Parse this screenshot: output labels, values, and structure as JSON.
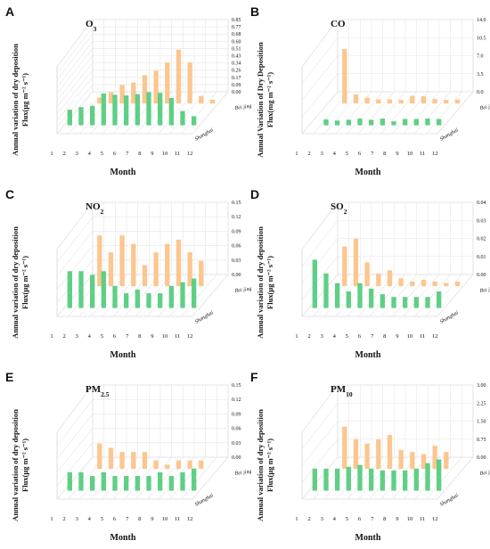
{
  "colors": {
    "beijing": "#fcc68f",
    "shanghai": "#5fcf85"
  },
  "months": [
    "1",
    "2",
    "3",
    "4",
    "5",
    "6",
    "7",
    "8",
    "9",
    "10",
    "11",
    "12"
  ],
  "xlabel": "Month",
  "sites": [
    "Bei jing",
    "Shanghai"
  ],
  "chart_data": [
    {
      "type": "bar",
      "panel": "A",
      "title": "O3",
      "title_main": "O",
      "title_sub": "3",
      "ylabel_line1": "Annual variation of dry deposition",
      "ylabel_line2": "Flux(μg m⁻² s⁻¹)",
      "xlabel": "Month",
      "categories": [
        "1",
        "2",
        "3",
        "4",
        "5",
        "6",
        "7",
        "8",
        "9",
        "10",
        "11",
        "12"
      ],
      "ylim": [
        0,
        0.85
      ],
      "ticks": [
        "0.00",
        "0.09",
        "0.17",
        "0.26",
        "0.34",
        "0.43",
        "0.51",
        "0.60",
        "0.68",
        "0.77",
        "0.85"
      ],
      "series": [
        {
          "name": "Bei jing",
          "values": [
            0.0,
            0.08,
            0.15,
            0.25,
            0.28,
            0.38,
            0.44,
            0.55,
            0.72,
            0.55,
            0.1,
            0.05
          ]
        },
        {
          "name": "Shanghai",
          "values": [
            0.24,
            0.28,
            0.3,
            0.49,
            0.47,
            0.46,
            0.48,
            0.51,
            0.5,
            0.42,
            0.22,
            0.14
          ]
        }
      ]
    },
    {
      "type": "bar",
      "panel": "B",
      "title": "CO",
      "title_main": "CO",
      "title_sub": "",
      "ylabel_line1": "Annual Variation of Dry Deposition",
      "ylabel_line2": "Flux(mg m⁻² s⁻¹)",
      "xlabel": "Month",
      "categories": [
        "1",
        "2",
        "3",
        "4",
        "5",
        "6",
        "7",
        "8",
        "9",
        "10",
        "11",
        "12"
      ],
      "ylim": [
        0,
        14.0
      ],
      "ticks": [
        "0.0",
        "3.5",
        "7.0",
        "10.5",
        "14.0"
      ],
      "series": [
        {
          "name": "Bei jing",
          "values": [
            0.0,
            12.0,
            2.0,
            1.3,
            0.9,
            0.9,
            0.8,
            1.7,
            1.6,
            1.0,
            0.8,
            0.9
          ]
        },
        {
          "name": "Shanghai",
          "values": [
            0.0,
            1.5,
            1.2,
            1.4,
            1.7,
            1.4,
            1.7,
            1.0,
            1.6,
            1.6,
            1.7,
            1.6
          ]
        }
      ]
    },
    {
      "type": "bar",
      "panel": "C",
      "title": "NO2",
      "title_main": "NO",
      "title_sub": "2",
      "ylabel_line1": "Annual variation of dry deposition",
      "ylabel_line2": "Flux(μg m⁻² s⁻¹)",
      "xlabel": "Month",
      "categories": [
        "1",
        "2",
        "3",
        "4",
        "5",
        "6",
        "7",
        "8",
        "9",
        "10",
        "11",
        "12"
      ],
      "ylim": [
        0,
        0.15
      ],
      "ticks": [
        "0.00",
        "0.03",
        "0.06",
        "0.09",
        "0.12",
        "0.15"
      ],
      "series": [
        {
          "name": "Bei jing",
          "values": [
            0.0,
            0.12,
            0.08,
            0.12,
            0.1,
            0.05,
            0.08,
            0.1,
            0.11,
            0.08,
            0.06,
            0.0
          ]
        },
        {
          "name": "Shanghai",
          "values": [
            0.1,
            0.1,
            0.09,
            0.1,
            0.06,
            0.04,
            0.05,
            0.04,
            0.04,
            0.06,
            0.07,
            0.08
          ]
        }
      ]
    },
    {
      "type": "bar",
      "panel": "D",
      "title": "SO2",
      "title_main": "SO",
      "title_sub": "2",
      "ylabel_line1": "Annual variation of dry deposition",
      "ylabel_line2": "Flux(μg m⁻² s⁻¹)",
      "xlabel": "Month",
      "categories": [
        "1",
        "2",
        "3",
        "4",
        "5",
        "6",
        "7",
        "8",
        "9",
        "10",
        "11",
        "12"
      ],
      "ylim": [
        0,
        0.04
      ],
      "ticks": [
        "0.00",
        "0.01",
        "0.02",
        "0.03",
        "0.04"
      ],
      "series": [
        {
          "name": "Bei jing",
          "values": [
            0.0,
            0.025,
            0.03,
            0.015,
            0.008,
            0.01,
            0.005,
            0.003,
            0.004,
            0.003,
            0.002,
            0.003
          ]
        },
        {
          "name": "Shanghai",
          "values": [
            0.035,
            0.025,
            0.018,
            0.012,
            0.018,
            0.014,
            0.01,
            0.008,
            0.008,
            0.008,
            0.008,
            0.012
          ]
        }
      ]
    },
    {
      "type": "bar",
      "panel": "E",
      "title": "PM2.5",
      "title_main": "PM",
      "title_sub": "2.5",
      "ylabel_line1": "Annual variation of dry deposition",
      "ylabel_line2": "Flux(μg m⁻² s⁻¹)",
      "xlabel": "Month",
      "categories": [
        "1",
        "2",
        "3",
        "4",
        "5",
        "6",
        "7",
        "8",
        "9",
        "10",
        "11",
        "12"
      ],
      "ylim": [
        0,
        0.15
      ],
      "ticks": [
        "0.00",
        "0.03",
        "0.06",
        "0.09",
        "0.12",
        "0.15"
      ],
      "series": [
        {
          "name": "Bei jing",
          "values": [
            0.0,
            0.06,
            0.05,
            0.04,
            0.04,
            0.04,
            0.02,
            0.01,
            0.02,
            0.02,
            0.02,
            0.0
          ]
        },
        {
          "name": "Shanghai",
          "values": [
            0.05,
            0.05,
            0.04,
            0.05,
            0.04,
            0.04,
            0.04,
            0.04,
            0.05,
            0.04,
            0.05,
            0.06
          ]
        }
      ]
    },
    {
      "type": "bar",
      "panel": "F",
      "title": "PM10",
      "title_main": "PM",
      "title_sub": "10",
      "ylabel_line1": "Annual variation of dry deposition",
      "ylabel_line2": "Flux(μg m⁻² s⁻¹)",
      "xlabel": "Month",
      "categories": [
        "1",
        "2",
        "3",
        "4",
        "5",
        "6",
        "7",
        "8",
        "9",
        "10",
        "11",
        "12"
      ],
      "ylim": [
        0,
        3.0
      ],
      "ticks": [
        "0.00",
        "0.75",
        "1.50",
        "2.25",
        "3.00"
      ],
      "series": [
        {
          "name": "Bei jing",
          "values": [
            0.0,
            2.0,
            1.4,
            1.2,
            1.4,
            1.6,
            0.9,
            0.8,
            0.7,
            1.1,
            0.8,
            0.0
          ]
        },
        {
          "name": "Shanghai",
          "values": [
            1.2,
            1.2,
            1.2,
            1.3,
            1.4,
            1.2,
            1.1,
            1.1,
            1.1,
            1.2,
            1.5,
            1.7
          ]
        }
      ]
    }
  ]
}
